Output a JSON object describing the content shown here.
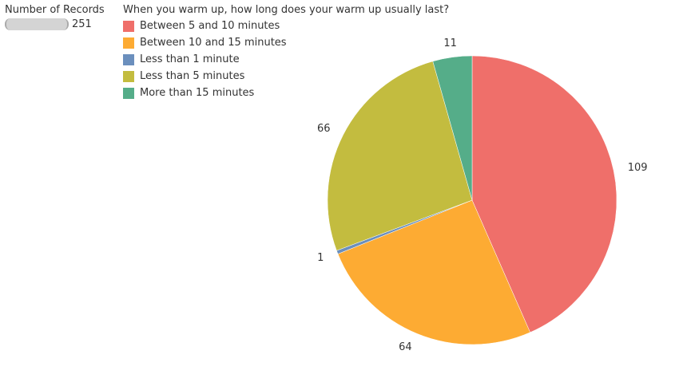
{
  "size_legend": {
    "title": "Number of Records",
    "value": "251"
  },
  "legend": {
    "title": "When you warm up, how long does your warm up usually last?",
    "items": [
      {
        "label": "Between 5 and 10 minutes",
        "color": "#ef6f6a"
      },
      {
        "label": "Between 10 and 15 minutes",
        "color": "#fdab33"
      },
      {
        "label": "Less than 1 minute",
        "color": "#6b8fbd"
      },
      {
        "label": "Less than 5 minutes",
        "color": "#c3bc3f"
      },
      {
        "label": "More than 15 minutes",
        "color": "#55ad89"
      }
    ]
  },
  "chart_data": {
    "type": "pie",
    "title": "",
    "categories": [
      "Between 5 and 10 minutes",
      "Between 10 and 15 minutes",
      "Less than 1 minute",
      "Less than 5 minutes",
      "More than 15 minutes"
    ],
    "values": [
      109,
      64,
      1,
      66,
      11
    ],
    "colors": [
      "#ef6f6a",
      "#fdab33",
      "#6b8fbd",
      "#c3bc3f",
      "#55ad89"
    ],
    "start": "12 o'clock",
    "direction": "clockwise",
    "legend_position": "top-left"
  }
}
